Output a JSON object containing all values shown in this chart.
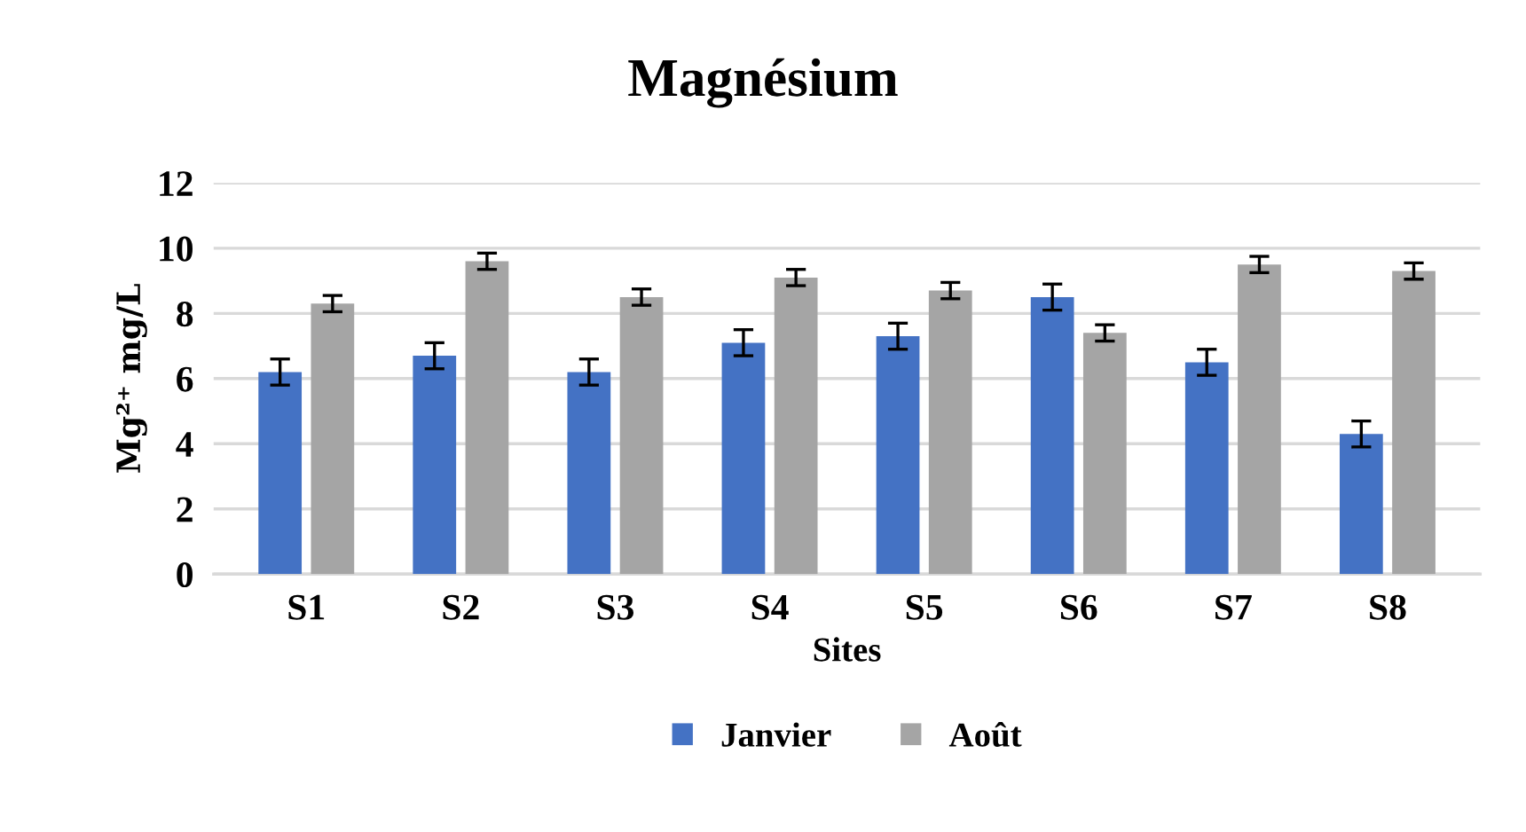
{
  "chart_data": {
    "type": "bar",
    "title": "Magnésium",
    "xlabel": "Sites",
    "ylabel": "Mg²⁺ mg/L",
    "categories": [
      "S1",
      "S2",
      "S3",
      "S4",
      "S5",
      "S6",
      "S7",
      "S8"
    ],
    "series": [
      {
        "name": "Janvier",
        "color": "#4472c4",
        "values": [
          6.2,
          6.7,
          6.2,
          7.1,
          7.3,
          8.5,
          6.5,
          4.3
        ],
        "errors": [
          0.4,
          0.4,
          0.4,
          0.4,
          0.4,
          0.4,
          0.4,
          0.4
        ]
      },
      {
        "name": "Août",
        "color": "#a5a5a5",
        "values": [
          8.3,
          9.6,
          8.5,
          9.1,
          8.7,
          7.4,
          9.5,
          9.3
        ],
        "errors": [
          0.25,
          0.25,
          0.25,
          0.25,
          0.25,
          0.25,
          0.25,
          0.25
        ]
      }
    ],
    "ylim": [
      0,
      12
    ],
    "yticks": [
      0,
      2,
      4,
      6,
      8,
      10,
      12
    ],
    "grid": "y",
    "legend": "bottom"
  }
}
